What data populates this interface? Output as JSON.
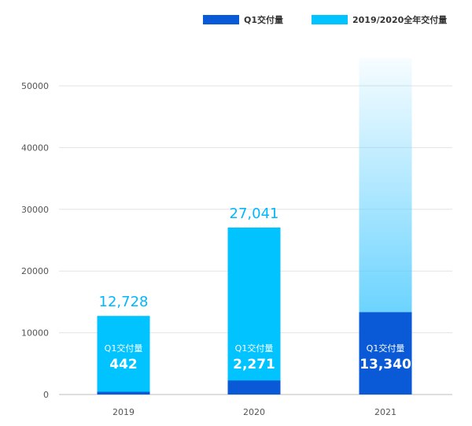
{
  "chart_data": {
    "type": "bar",
    "categories": [
      "2019",
      "2020",
      "2021"
    ],
    "series": [
      {
        "name": "Q1交付量",
        "values": [
          442,
          2271,
          13340
        ],
        "color": "#0a5ad8"
      },
      {
        "name": "2019/2020全年交付量",
        "values": [
          12728,
          27041,
          null
        ],
        "color": "#00c3ff"
      }
    ],
    "annual_labels": [
      "12,728",
      "27,041",
      ""
    ],
    "q1_labels": [
      "442",
      "2,271",
      "13,340"
    ],
    "bar_caption": "Q1交付量",
    "yticks": [
      0,
      10000,
      20000,
      30000,
      40000,
      50000
    ],
    "ylim": [
      0,
      55000
    ],
    "grid": true,
    "legend": "top-right",
    "label_color": "#00b7ff"
  }
}
